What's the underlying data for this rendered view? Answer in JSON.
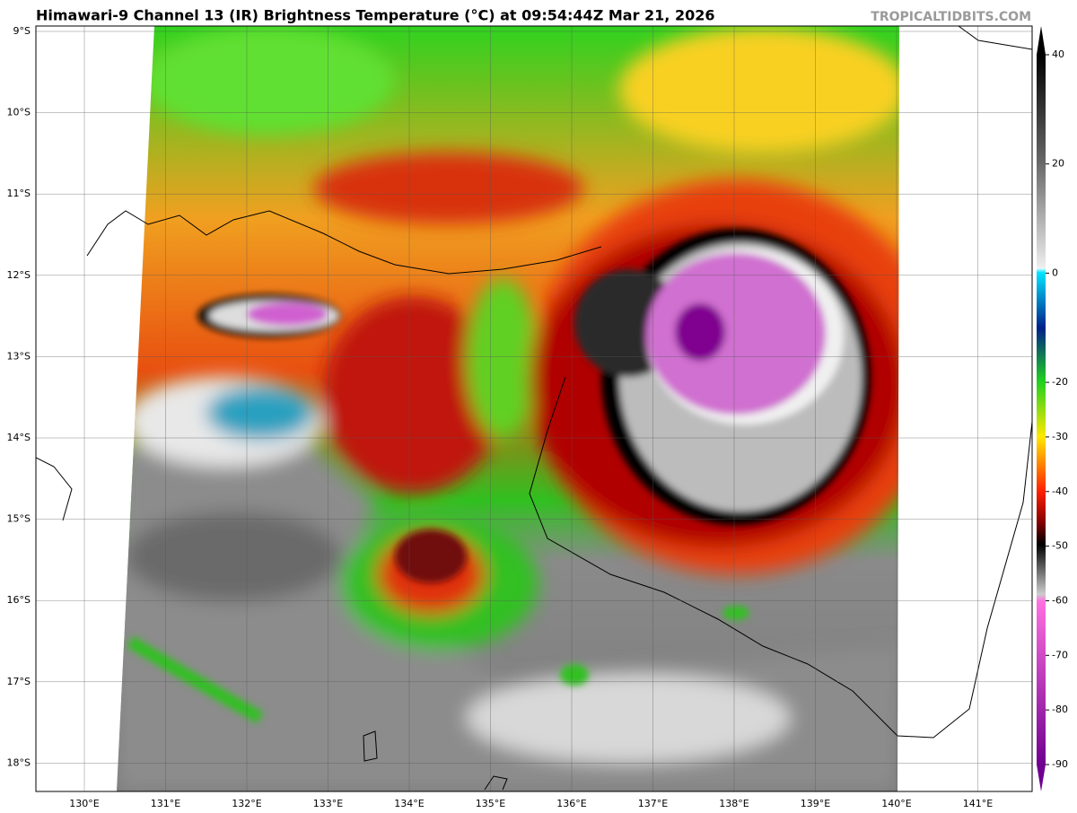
{
  "title": "Himawari-9 Channel 13 (IR) Brightness Temperature (°C) at 09:54:44Z Mar 21, 2026",
  "watermark": "TROPICALTIDBITS.COM",
  "latitude_labels": [
    "9°S",
    "10°S",
    "11°S",
    "12°S",
    "13°S",
    "14°S",
    "15°S",
    "16°S",
    "17°S",
    "18°S"
  ],
  "longitude_labels": [
    "130°E",
    "131°E",
    "132°E",
    "133°E",
    "134°E",
    "135°E",
    "136°E",
    "137°E",
    "138°E",
    "139°E",
    "140°E",
    "141°E"
  ],
  "colorbar": {
    "ticks": [
      40,
      20,
      0,
      -20,
      -30,
      -40,
      -50,
      -60,
      -70,
      -80,
      -90
    ]
  }
}
